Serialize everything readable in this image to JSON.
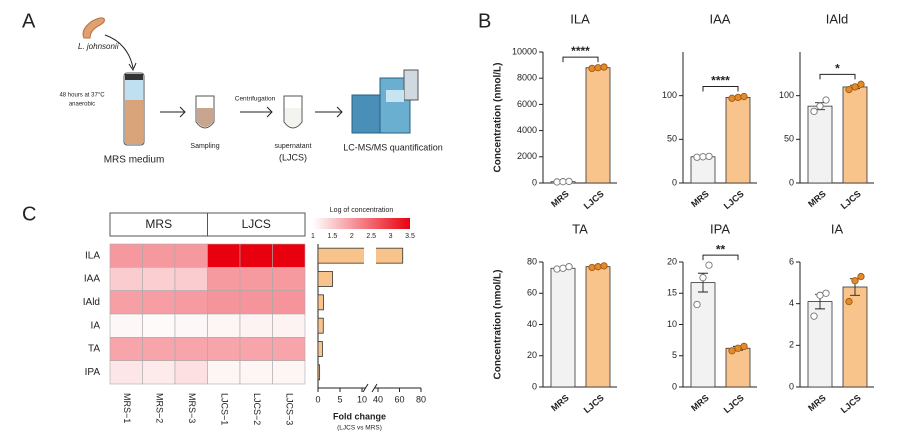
{
  "panel_a": {
    "label": "A",
    "organism": "L. johnsonii",
    "condition_1": "48 hours at 37°C",
    "condition_2": "anaerobic",
    "medium": "MRS medium",
    "step_1": "Sampling",
    "step_2": "Centrifugation",
    "step_3": "supernatant",
    "step_3b": "(LJCS)",
    "step_4": "LC-MS/MS quantification"
  },
  "panel_b_label": "B",
  "panel_c_label": "C",
  "chart_data": [
    {
      "type": "bar",
      "title": "ILA",
      "y_label": "Concentration (nmol/L)",
      "categories": [
        "MRS",
        "LJCS"
      ],
      "values": [
        100,
        8800
      ],
      "errors": [
        20,
        50
      ],
      "points": [
        [
          80,
          100,
          120
        ],
        [
          8750,
          8800,
          8850
        ]
      ],
      "colors": [
        "#f2f2f2",
        "#f9c48c"
      ],
      "point_colors": [
        "#ffffff",
        "#e38b2c"
      ],
      "ylim": [
        0,
        10000
      ],
      "yticks": [
        0,
        2000,
        4000,
        6000,
        8000,
        10000
      ],
      "annotation": "****"
    },
    {
      "type": "bar",
      "title": "IAA",
      "categories": [
        "MRS",
        "LJCS"
      ],
      "values": [
        30,
        98
      ],
      "errors": [
        0.5,
        0.8
      ],
      "points": [
        [
          29.5,
          30,
          30.5
        ],
        [
          97,
          98,
          99
        ]
      ],
      "colors": [
        "#f2f2f2",
        "#f9c48c"
      ],
      "point_colors": [
        "#ffffff",
        "#e38b2c"
      ],
      "ylim": [
        0,
        150
      ],
      "yticks": [
        0,
        50,
        100
      ],
      "annotation": "****"
    },
    {
      "type": "bar",
      "title": "IAld",
      "categories": [
        "MRS",
        "LJCS"
      ],
      "values": [
        88,
        110
      ],
      "errors": [
        4,
        2
      ],
      "points": [
        [
          82,
          88,
          95
        ],
        [
          107,
          110,
          113
        ]
      ],
      "colors": [
        "#f2f2f2",
        "#f9c48c"
      ],
      "point_colors": [
        "#ffffff",
        "#e38b2c"
      ],
      "ylim": [
        0,
        150
      ],
      "yticks": [
        0,
        50,
        100
      ],
      "annotation": "*"
    },
    {
      "type": "bar",
      "title": "TA",
      "y_label": "Concentration (nmol/L)",
      "categories": [
        "MRS",
        "LJCS"
      ],
      "values": [
        76,
        77
      ],
      "errors": [
        0.6,
        0.5
      ],
      "points": [
        [
          75.5,
          76,
          77
        ],
        [
          76.5,
          77,
          77.5
        ]
      ],
      "colors": [
        "#f2f2f2",
        "#f9c48c"
      ],
      "point_colors": [
        "#ffffff",
        "#e38b2c"
      ],
      "ylim": [
        0,
        80
      ],
      "yticks": [
        0,
        20,
        40,
        60,
        80
      ]
    },
    {
      "type": "bar",
      "title": "IPA",
      "categories": [
        "MRS",
        "LJCS"
      ],
      "values": [
        16.7,
        6.2
      ],
      "errors": [
        1.5,
        0.3
      ],
      "points": [
        [
          13.2,
          17.5,
          19.5
        ],
        [
          5.8,
          6.2,
          6.5
        ]
      ],
      "colors": [
        "#f2f2f2",
        "#f9c48c"
      ],
      "point_colors": [
        "#ffffff",
        "#e38b2c"
      ],
      "ylim": [
        0,
        20
      ],
      "yticks": [
        0,
        5,
        10,
        15,
        20
      ],
      "annotation": "**"
    },
    {
      "type": "bar",
      "title": "IA",
      "categories": [
        "MRS",
        "LJCS"
      ],
      "values": [
        4.1,
        4.8
      ],
      "errors": [
        0.35,
        0.4
      ],
      "points": [
        [
          3.4,
          4.4,
          4.5
        ],
        [
          4.1,
          5.1,
          5.3
        ]
      ],
      "colors": [
        "#f2f2f2",
        "#f9c48c"
      ],
      "point_colors": [
        "#ffffff",
        "#e38b2c"
      ],
      "ylim": [
        0,
        6
      ],
      "yticks": [
        0,
        2,
        4,
        6
      ]
    },
    {
      "type": "heatmap",
      "group_labels": [
        "MRS",
        "LJCS"
      ],
      "columns": [
        "MRS−1",
        "MRS−2",
        "MRS−3",
        "LJCS−1",
        "LJCS−2",
        "LJCS−3"
      ],
      "rows": [
        "ILA",
        "IAA",
        "IAld",
        "IA",
        "TA",
        "IPA"
      ],
      "values": [
        [
          2.0,
          2.0,
          2.0,
          3.5,
          3.5,
          3.5
        ],
        [
          1.5,
          1.48,
          1.5,
          1.99,
          1.99,
          1.99
        ],
        [
          1.94,
          1.95,
          1.98,
          2.04,
          2.04,
          2.05
        ],
        [
          1.08,
          1.05,
          1.08,
          1.1,
          1.12,
          1.12
        ],
        [
          1.88,
          1.88,
          1.88,
          1.89,
          1.89,
          1.89
        ],
        [
          1.25,
          1.2,
          1.3,
          1.1,
          1.1,
          1.1
        ]
      ],
      "colorbar_title": "Log of concentration",
      "zlim": [
        1,
        3.5
      ],
      "zticks": [
        1,
        1.5,
        2,
        2.5,
        3,
        3.5
      ],
      "colors": [
        "#ffffff",
        "#e8000f"
      ]
    },
    {
      "type": "hbar",
      "values": [
        63,
        3.3,
        1.25,
        1.2,
        1.0,
        0.37
      ],
      "color": "#f9c48c",
      "xlim": [
        0,
        80
      ],
      "xbreak": [
        10,
        40
      ],
      "xticks": [
        0,
        5,
        10,
        40,
        60,
        80
      ],
      "x_label": "Fold change",
      "x_sublabel": "(LJCS vs MRS)"
    }
  ]
}
